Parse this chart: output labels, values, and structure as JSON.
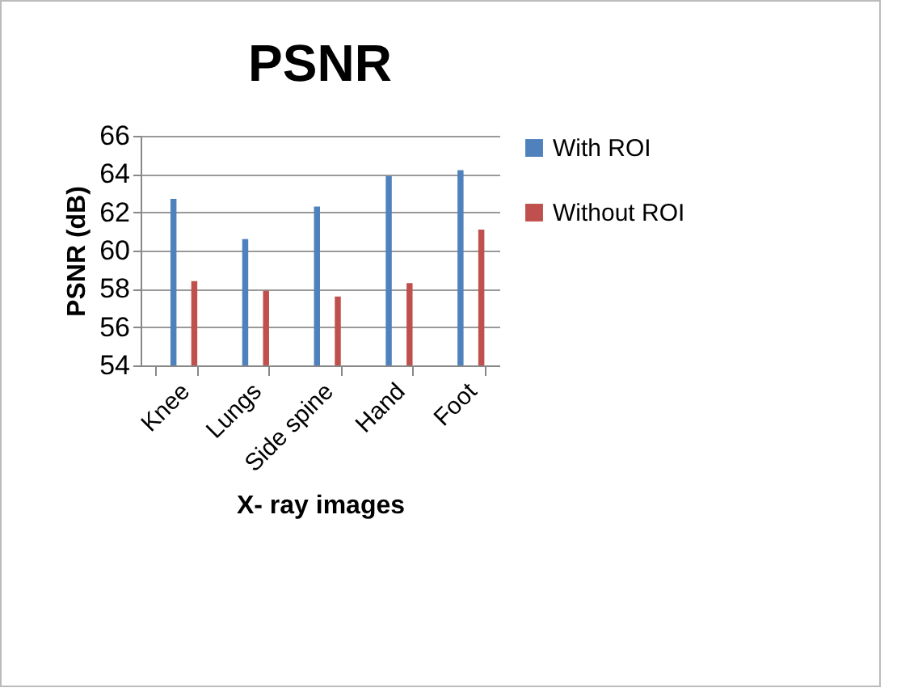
{
  "chart_data": {
    "type": "bar",
    "title": "PSNR",
    "xlabel": "X- ray images",
    "ylabel": "PSNR (dB)",
    "categories": [
      "Knee",
      "Lungs",
      "Side spine",
      "Hand",
      "Foot"
    ],
    "series": [
      {
        "name": "With ROI",
        "color": "#4f81bd",
        "values": [
          62.7,
          60.6,
          62.3,
          63.9,
          64.2
        ]
      },
      {
        "name": "Without ROI",
        "color": "#c0504d",
        "values": [
          58.4,
          57.9,
          57.6,
          58.3,
          61.1
        ]
      }
    ],
    "ylim": [
      54,
      66
    ],
    "yticks": [
      54,
      56,
      58,
      60,
      62,
      64,
      66
    ],
    "grid": "y",
    "legend": "right"
  }
}
